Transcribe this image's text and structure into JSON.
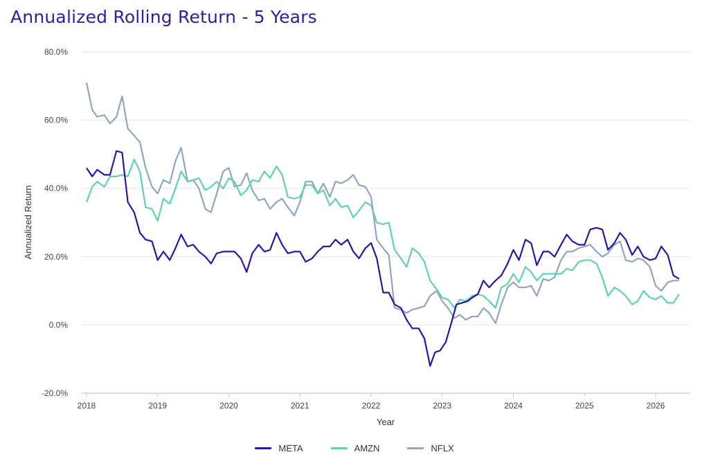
{
  "title": "Annualized Rolling Return - 5 Years",
  "colors": {
    "title": "#2b1ea3",
    "grid": "#e6e6e6"
  },
  "chart_data": {
    "type": "line",
    "title": "Annualized Rolling Return - 5 Years",
    "xlabel": "Year",
    "ylabel": "Annualized Return",
    "ylim": [
      -20,
      80
    ],
    "xlim": [
      2018,
      2026.4
    ],
    "y_ticks": [
      "-20.0%",
      "0.0%",
      "20.0%",
      "40.0%",
      "60.0%",
      "80.0%"
    ],
    "x_ticks": [
      "2018",
      "2019",
      "2020",
      "2021",
      "2022",
      "2023",
      "2024",
      "2025",
      "2026"
    ],
    "grid": true,
    "legend_position": "bottom",
    "series": [
      {
        "name": "META",
        "color": "#2416a8",
        "points": [
          [
            2018.0,
            46
          ],
          [
            2018.08,
            43.5
          ],
          [
            2018.15,
            45.5
          ],
          [
            2018.25,
            44
          ],
          [
            2018.33,
            44
          ],
          [
            2018.42,
            51
          ],
          [
            2018.5,
            50.5
          ],
          [
            2018.58,
            36
          ],
          [
            2018.67,
            33
          ],
          [
            2018.75,
            27
          ],
          [
            2018.83,
            25
          ],
          [
            2018.92,
            24.5
          ],
          [
            2019.0,
            19
          ],
          [
            2019.08,
            21.5
          ],
          [
            2019.17,
            19
          ],
          [
            2019.25,
            22.5
          ],
          [
            2019.33,
            26.5
          ],
          [
            2019.42,
            23
          ],
          [
            2019.5,
            23.5
          ],
          [
            2019.58,
            21.5
          ],
          [
            2019.67,
            20
          ],
          [
            2019.75,
            18
          ],
          [
            2019.83,
            21
          ],
          [
            2019.92,
            21.5
          ],
          [
            2020.0,
            21.5
          ],
          [
            2020.08,
            21.5
          ],
          [
            2020.17,
            19.5
          ],
          [
            2020.25,
            15.5
          ],
          [
            2020.33,
            21
          ],
          [
            2020.42,
            23.5
          ],
          [
            2020.5,
            21.5
          ],
          [
            2020.58,
            22
          ],
          [
            2020.67,
            27
          ],
          [
            2020.75,
            23.5
          ],
          [
            2020.83,
            21
          ],
          [
            2020.92,
            21.5
          ],
          [
            2021.0,
            21.5
          ],
          [
            2021.08,
            18.5
          ],
          [
            2021.17,
            19.5
          ],
          [
            2021.25,
            21.5
          ],
          [
            2021.33,
            23
          ],
          [
            2021.42,
            23
          ],
          [
            2021.5,
            25
          ],
          [
            2021.58,
            23.5
          ],
          [
            2021.67,
            25
          ],
          [
            2021.75,
            21.5
          ],
          [
            2021.83,
            19.5
          ],
          [
            2021.92,
            22.5
          ],
          [
            2022.0,
            24
          ],
          [
            2022.08,
            19.5
          ],
          [
            2022.17,
            9.5
          ],
          [
            2022.25,
            9.5
          ],
          [
            2022.33,
            6
          ],
          [
            2022.42,
            5
          ],
          [
            2022.5,
            1.5
          ],
          [
            2022.58,
            -1
          ],
          [
            2022.67,
            -1
          ],
          [
            2022.75,
            -4
          ],
          [
            2022.83,
            -12
          ],
          [
            2022.9,
            -8
          ],
          [
            2022.97,
            -7.5
          ],
          [
            2023.05,
            -5
          ],
          [
            2023.12,
            0
          ],
          [
            2023.2,
            6
          ],
          [
            2023.28,
            6.5
          ],
          [
            2023.36,
            7
          ],
          [
            2023.42,
            8
          ],
          [
            2023.5,
            9
          ],
          [
            2023.58,
            13
          ],
          [
            2023.66,
            11
          ],
          [
            2023.75,
            13
          ],
          [
            2023.83,
            14.5
          ],
          [
            2023.92,
            18
          ],
          [
            2024.0,
            22
          ],
          [
            2024.08,
            19
          ],
          [
            2024.17,
            25
          ],
          [
            2024.25,
            24
          ],
          [
            2024.33,
            17.5
          ],
          [
            2024.42,
            21.5
          ],
          [
            2024.5,
            21.5
          ],
          [
            2024.58,
            20
          ],
          [
            2024.67,
            23.5
          ],
          [
            2024.75,
            26.5
          ],
          [
            2024.83,
            24.5
          ],
          [
            2024.92,
            23.5
          ],
          [
            2025.0,
            23.5
          ],
          [
            2025.08,
            28
          ],
          [
            2025.17,
            28.5
          ],
          [
            2025.25,
            28
          ],
          [
            2025.33,
            22
          ],
          [
            2025.42,
            24
          ],
          [
            2025.5,
            27
          ],
          [
            2025.58,
            25
          ],
          [
            2025.67,
            20.5
          ],
          [
            2025.75,
            23
          ],
          [
            2025.83,
            20
          ],
          [
            2025.92,
            19
          ],
          [
            2026.0,
            19.5
          ],
          [
            2026.08,
            23
          ],
          [
            2026.17,
            20.5
          ],
          [
            2026.25,
            14.5
          ],
          [
            2026.33,
            13.5
          ]
        ]
      },
      {
        "name": "AMZN",
        "color": "#5ed3a8",
        "points": [
          [
            2018.0,
            36
          ],
          [
            2018.08,
            40.5
          ],
          [
            2018.15,
            42
          ],
          [
            2018.25,
            40.5
          ],
          [
            2018.33,
            43.5
          ],
          [
            2018.42,
            43.5
          ],
          [
            2018.5,
            44
          ],
          [
            2018.58,
            43.5
          ],
          [
            2018.67,
            48.5
          ],
          [
            2018.75,
            45
          ],
          [
            2018.83,
            34.5
          ],
          [
            2018.92,
            34
          ],
          [
            2019.0,
            30.5
          ],
          [
            2019.08,
            37
          ],
          [
            2019.17,
            35.5
          ],
          [
            2019.25,
            40
          ],
          [
            2019.33,
            45
          ],
          [
            2019.42,
            42
          ],
          [
            2019.5,
            42.5
          ],
          [
            2019.58,
            43
          ],
          [
            2019.67,
            39.5
          ],
          [
            2019.75,
            40.5
          ],
          [
            2019.83,
            42
          ],
          [
            2019.92,
            40
          ],
          [
            2020.0,
            43
          ],
          [
            2020.08,
            42
          ],
          [
            2020.17,
            38
          ],
          [
            2020.25,
            39.5
          ],
          [
            2020.33,
            42.5
          ],
          [
            2020.42,
            42
          ],
          [
            2020.5,
            45
          ],
          [
            2020.58,
            43
          ],
          [
            2020.67,
            46.5
          ],
          [
            2020.75,
            44
          ],
          [
            2020.83,
            37.5
          ],
          [
            2020.92,
            37
          ],
          [
            2021.0,
            37.5
          ],
          [
            2021.08,
            41
          ],
          [
            2021.17,
            41
          ],
          [
            2021.25,
            38.5
          ],
          [
            2021.33,
            39.5
          ],
          [
            2021.42,
            35
          ],
          [
            2021.5,
            37
          ],
          [
            2021.58,
            34.5
          ],
          [
            2021.67,
            35
          ],
          [
            2021.75,
            31.5
          ],
          [
            2021.83,
            33.5
          ],
          [
            2021.92,
            36
          ],
          [
            2022.0,
            35
          ],
          [
            2022.08,
            30
          ],
          [
            2022.17,
            29.5
          ],
          [
            2022.25,
            30
          ],
          [
            2022.33,
            22
          ],
          [
            2022.42,
            19.5
          ],
          [
            2022.5,
            17
          ],
          [
            2022.58,
            22.5
          ],
          [
            2022.67,
            21
          ],
          [
            2022.75,
            18.5
          ],
          [
            2022.83,
            13
          ],
          [
            2022.92,
            10.5
          ],
          [
            2023.0,
            8
          ],
          [
            2023.08,
            7.5
          ],
          [
            2023.17,
            5
          ],
          [
            2023.25,
            7.5
          ],
          [
            2023.33,
            7
          ],
          [
            2023.42,
            8.5
          ],
          [
            2023.5,
            9
          ],
          [
            2023.58,
            8.5
          ],
          [
            2023.66,
            7
          ],
          [
            2023.75,
            5
          ],
          [
            2023.83,
            11
          ],
          [
            2023.92,
            12
          ],
          [
            2024.0,
            15
          ],
          [
            2024.08,
            12.5
          ],
          [
            2024.17,
            17
          ],
          [
            2024.25,
            15.5
          ],
          [
            2024.33,
            13
          ],
          [
            2024.42,
            15
          ],
          [
            2024.5,
            15
          ],
          [
            2024.58,
            15
          ],
          [
            2024.67,
            15
          ],
          [
            2024.75,
            16.5
          ],
          [
            2024.83,
            16
          ],
          [
            2024.92,
            18.5
          ],
          [
            2025.0,
            19
          ],
          [
            2025.08,
            19
          ],
          [
            2025.17,
            18
          ],
          [
            2025.25,
            14
          ],
          [
            2025.33,
            8.5
          ],
          [
            2025.42,
            11
          ],
          [
            2025.5,
            10
          ],
          [
            2025.58,
            8.5
          ],
          [
            2025.67,
            6
          ],
          [
            2025.75,
            7
          ],
          [
            2025.83,
            10
          ],
          [
            2025.92,
            8
          ],
          [
            2026.0,
            7.5
          ],
          [
            2026.08,
            8.5
          ],
          [
            2026.17,
            6.5
          ],
          [
            2026.25,
            6.5
          ],
          [
            2026.33,
            9
          ]
        ]
      },
      {
        "name": "NFLX",
        "color": "#8fa6bd",
        "points": [
          [
            2018.0,
            71
          ],
          [
            2018.08,
            63
          ],
          [
            2018.15,
            61
          ],
          [
            2018.25,
            61.5
          ],
          [
            2018.33,
            59
          ],
          [
            2018.42,
            61
          ],
          [
            2018.5,
            67
          ],
          [
            2018.58,
            57.5
          ],
          [
            2018.67,
            55.5
          ],
          [
            2018.75,
            53.5
          ],
          [
            2018.83,
            46
          ],
          [
            2018.92,
            40.5
          ],
          [
            2019.0,
            38.5
          ],
          [
            2019.08,
            42.5
          ],
          [
            2019.17,
            41.5
          ],
          [
            2019.25,
            48
          ],
          [
            2019.33,
            52
          ],
          [
            2019.42,
            42
          ],
          [
            2019.5,
            42.5
          ],
          [
            2019.58,
            40
          ],
          [
            2019.67,
            34
          ],
          [
            2019.75,
            33
          ],
          [
            2019.83,
            38.5
          ],
          [
            2019.92,
            45
          ],
          [
            2020.0,
            46
          ],
          [
            2020.08,
            40.5
          ],
          [
            2020.17,
            41
          ],
          [
            2020.25,
            44.5
          ],
          [
            2020.33,
            39.5
          ],
          [
            2020.42,
            36.5
          ],
          [
            2020.5,
            37
          ],
          [
            2020.58,
            34
          ],
          [
            2020.67,
            36
          ],
          [
            2020.75,
            37
          ],
          [
            2020.83,
            34.5
          ],
          [
            2020.92,
            32
          ],
          [
            2021.0,
            36
          ],
          [
            2021.08,
            42
          ],
          [
            2021.17,
            42
          ],
          [
            2021.25,
            38.5
          ],
          [
            2021.33,
            41.5
          ],
          [
            2021.42,
            37.5
          ],
          [
            2021.5,
            42
          ],
          [
            2021.58,
            41.5
          ],
          [
            2021.67,
            42.5
          ],
          [
            2021.75,
            44
          ],
          [
            2021.83,
            41
          ],
          [
            2021.92,
            40.5
          ],
          [
            2022.0,
            37.5
          ],
          [
            2022.08,
            25
          ],
          [
            2022.17,
            22.5
          ],
          [
            2022.25,
            20.5
          ],
          [
            2022.33,
            5
          ],
          [
            2022.42,
            4.5
          ],
          [
            2022.5,
            3.5
          ],
          [
            2022.58,
            4.5
          ],
          [
            2022.67,
            5
          ],
          [
            2022.75,
            5.5
          ],
          [
            2022.83,
            8.5
          ],
          [
            2022.92,
            10
          ],
          [
            2023.0,
            7
          ],
          [
            2023.08,
            5
          ],
          [
            2023.17,
            2
          ],
          [
            2023.25,
            3
          ],
          [
            2023.33,
            1.5
          ],
          [
            2023.42,
            2.5
          ],
          [
            2023.5,
            2.5
          ],
          [
            2023.58,
            5
          ],
          [
            2023.66,
            3.5
          ],
          [
            2023.75,
            0.5
          ],
          [
            2023.83,
            6
          ],
          [
            2023.92,
            11
          ],
          [
            2024.0,
            12.5
          ],
          [
            2024.08,
            11
          ],
          [
            2024.17,
            11
          ],
          [
            2024.25,
            11.5
          ],
          [
            2024.33,
            8.5
          ],
          [
            2024.42,
            13.5
          ],
          [
            2024.5,
            13
          ],
          [
            2024.58,
            14
          ],
          [
            2024.67,
            19
          ],
          [
            2024.75,
            21.5
          ],
          [
            2024.83,
            21.5
          ],
          [
            2024.92,
            22.5
          ],
          [
            2025.0,
            23
          ],
          [
            2025.08,
            23.5
          ],
          [
            2025.17,
            21.5
          ],
          [
            2025.25,
            20
          ],
          [
            2025.33,
            21
          ],
          [
            2025.42,
            23.5
          ],
          [
            2025.5,
            24.5
          ],
          [
            2025.58,
            19
          ],
          [
            2025.67,
            18.5
          ],
          [
            2025.75,
            19.5
          ],
          [
            2025.83,
            19
          ],
          [
            2025.92,
            17
          ],
          [
            2026.0,
            11.5
          ],
          [
            2026.08,
            10
          ],
          [
            2026.17,
            12.5
          ],
          [
            2026.25,
            13
          ],
          [
            2026.33,
            13
          ]
        ]
      }
    ]
  }
}
